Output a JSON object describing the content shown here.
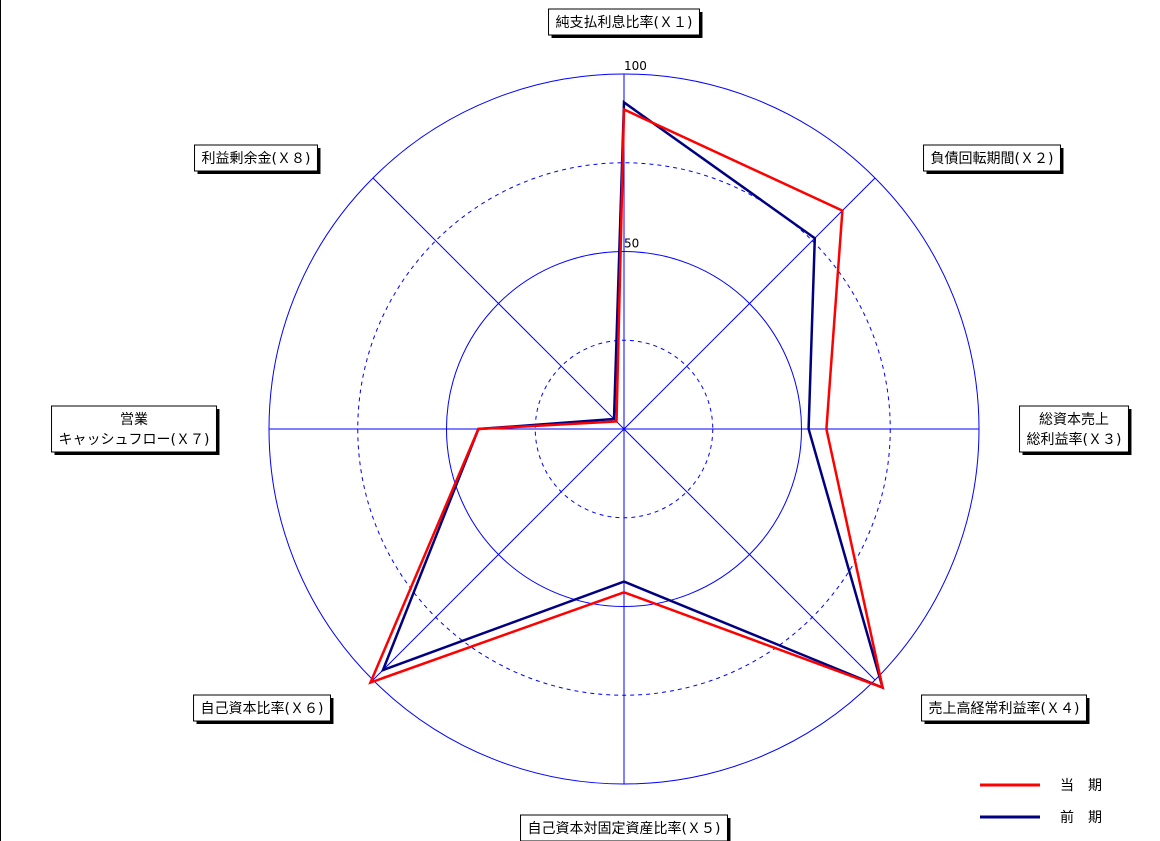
{
  "chart_data": {
    "type": "radar",
    "max": 100,
    "tick_labels": [
      "50",
      "100"
    ],
    "axes": [
      {
        "id": "X1",
        "lines": [
          "純支払利息比率(Ｘ１)"
        ]
      },
      {
        "id": "X2",
        "lines": [
          "負債回転期間(Ｘ２)"
        ]
      },
      {
        "id": "X3",
        "lines": [
          "総資本売上",
          "総利益率(Ｘ３)"
        ]
      },
      {
        "id": "X4",
        "lines": [
          "売上高経常利益率(Ｘ４)"
        ]
      },
      {
        "id": "X5",
        "lines": [
          "自己資本対固定資産比率(Ｘ５)"
        ]
      },
      {
        "id": "X6",
        "lines": [
          "自己資本比率(Ｘ６)"
        ]
      },
      {
        "id": "X7",
        "lines": [
          "営業",
          "キャッシュフロー(Ｘ７)"
        ]
      },
      {
        "id": "X8",
        "lines": [
          "利益剰余金(Ｘ８)"
        ]
      }
    ],
    "series": [
      {
        "name": "当　期",
        "color": "#ff0000",
        "values": [
          90,
          87,
          57,
          103,
          46,
          101,
          41,
          3
        ]
      },
      {
        "name": "前　期",
        "color": "#000080",
        "values": [
          92,
          76,
          52,
          103,
          43,
          96,
          41,
          4
        ]
      }
    ],
    "grid": {
      "solid_rings": [
        50,
        100
      ],
      "dashed_rings": [
        25,
        75
      ],
      "color": "#0000ff"
    },
    "legend": "bottom-right"
  }
}
